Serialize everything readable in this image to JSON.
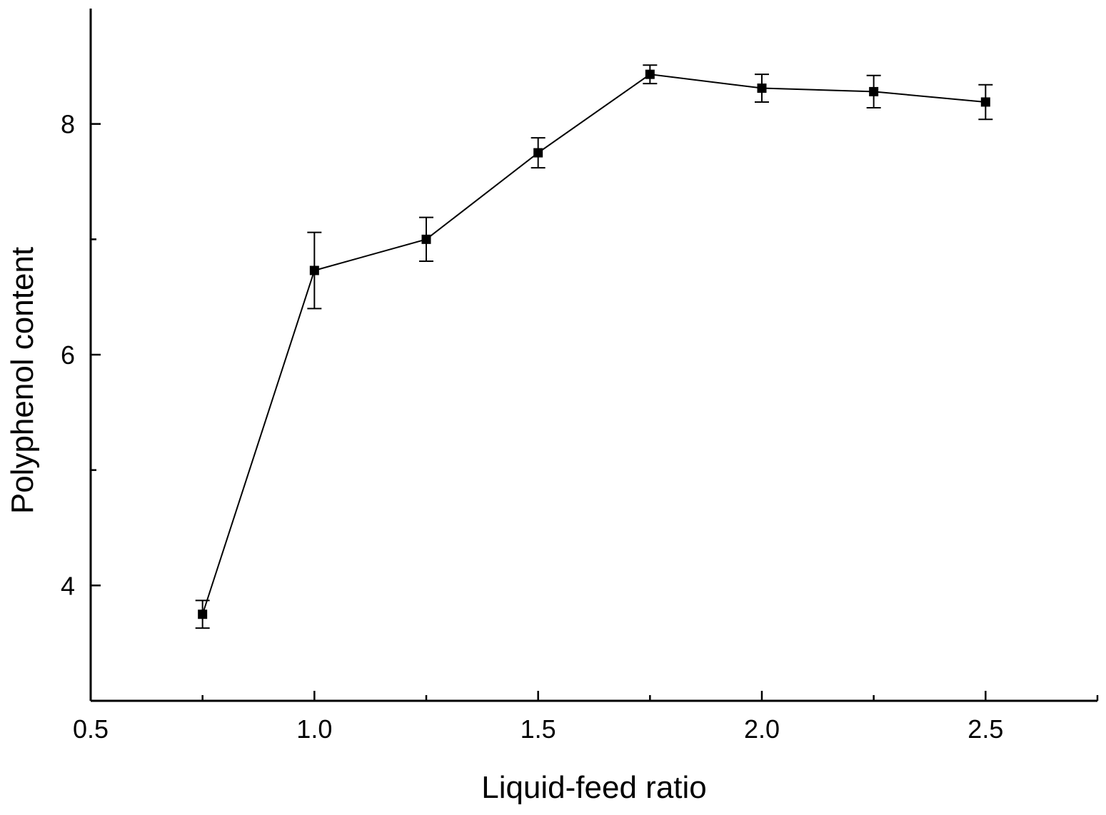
{
  "chart_data": {
    "type": "line",
    "title": "",
    "xlabel": "Liquid-feed ratio",
    "ylabel": "Polyphenol content",
    "xlim": [
      0.5,
      2.75
    ],
    "ylim": [
      3.0,
      9.0
    ],
    "x_ticks": [
      0.5,
      1.0,
      1.5,
      2.0,
      2.5
    ],
    "x_tick_labels": [
      "0.5",
      "1.0",
      "1.5",
      "2.0",
      "2.5"
    ],
    "x_minor_ticks": [
      0.75,
      1.25,
      1.75,
      2.25,
      2.75
    ],
    "y_ticks": [
      4,
      6,
      8
    ],
    "y_tick_labels": [
      "4",
      "6",
      "8"
    ],
    "y_minor_ticks": [
      5,
      7
    ],
    "grid": false,
    "legend": "none",
    "series": [
      {
        "marker": "square",
        "color": "#000000",
        "x": [
          0.75,
          1.0,
          1.25,
          1.5,
          1.75,
          2.0,
          2.25,
          2.5
        ],
        "y": [
          3.75,
          6.73,
          7.0,
          7.75,
          8.43,
          8.31,
          8.28,
          8.19
        ],
        "error": [
          0.12,
          0.33,
          0.19,
          0.13,
          0.08,
          0.12,
          0.14,
          0.15
        ]
      }
    ]
  }
}
